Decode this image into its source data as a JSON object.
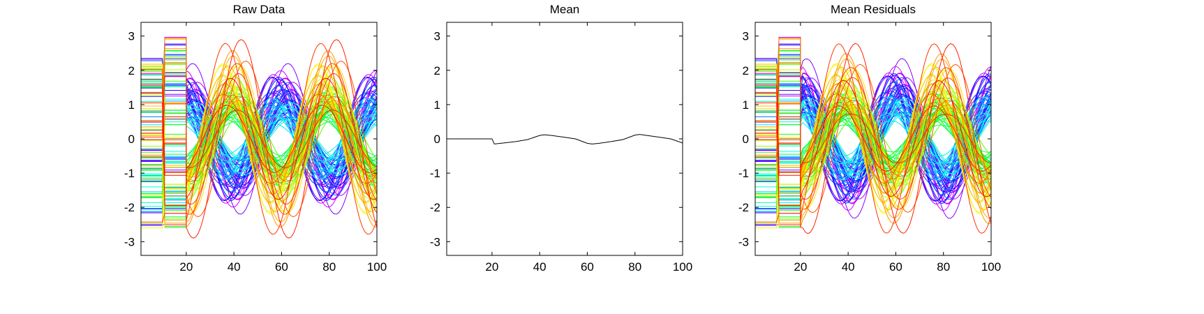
{
  "page": {
    "background": "#ffffff"
  },
  "chart_data": [
    {
      "type": "line",
      "title": "Raw Data",
      "xlabel": "",
      "ylabel": "",
      "xlim": [
        1,
        100
      ],
      "ylim": [
        -3.4,
        3.4
      ],
      "xticks": [
        20,
        40,
        60,
        80,
        100
      ],
      "yticks": [
        3,
        2,
        1,
        0,
        -1,
        -2,
        -3
      ],
      "grid": false,
      "legend": "none",
      "series_count": 120,
      "color_map": "hsv-rainbow",
      "structure": {
        "step_segment_1": {
          "x": [
            1,
            10
          ],
          "y_range": [
            -2.6,
            2.35
          ]
        },
        "step_segment_2": {
          "x": [
            11,
            20
          ],
          "y_range": [
            -2.6,
            3.2
          ]
        },
        "sinusoid": {
          "x": [
            20,
            100
          ],
          "period": 40,
          "amplitude_range": [
            0.8,
            3.0
          ],
          "peak_x_range": [
            35,
            45
          ]
        }
      }
    },
    {
      "type": "line",
      "title": "Mean",
      "xlabel": "",
      "ylabel": "",
      "xlim": [
        1,
        100
      ],
      "ylim": [
        -3.4,
        3.4
      ],
      "xticks": [
        20,
        40,
        60,
        80,
        100
      ],
      "yticks": [
        3,
        2,
        1,
        0,
        -1,
        -2,
        -3
      ],
      "grid": false,
      "legend": "none",
      "series": [
        {
          "color": "#000000",
          "x": [
            1,
            10,
            20,
            21,
            25,
            30,
            35,
            40,
            42,
            45,
            50,
            55,
            60,
            62,
            65,
            70,
            75,
            80,
            82,
            85,
            90,
            95,
            100
          ],
          "values": [
            0.0,
            0.0,
            0.0,
            -0.15,
            -0.12,
            -0.08,
            -0.02,
            0.1,
            0.12,
            0.1,
            0.05,
            0.0,
            -0.13,
            -0.15,
            -0.13,
            -0.08,
            -0.02,
            0.11,
            0.13,
            0.1,
            0.05,
            0.0,
            -0.12
          ]
        }
      ]
    },
    {
      "type": "line",
      "title": "Mean Residuals",
      "xlabel": "",
      "ylabel": "",
      "xlim": [
        1,
        100
      ],
      "ylim": [
        -3.4,
        3.4
      ],
      "xticks": [
        20,
        40,
        60,
        80,
        100
      ],
      "yticks": [
        3,
        2,
        1,
        0,
        -1,
        -2,
        -3
      ],
      "grid": false,
      "legend": "none",
      "series_count": 120,
      "color_map": "hsv-rainbow",
      "derived_from": "Raw Data minus Mean"
    }
  ]
}
